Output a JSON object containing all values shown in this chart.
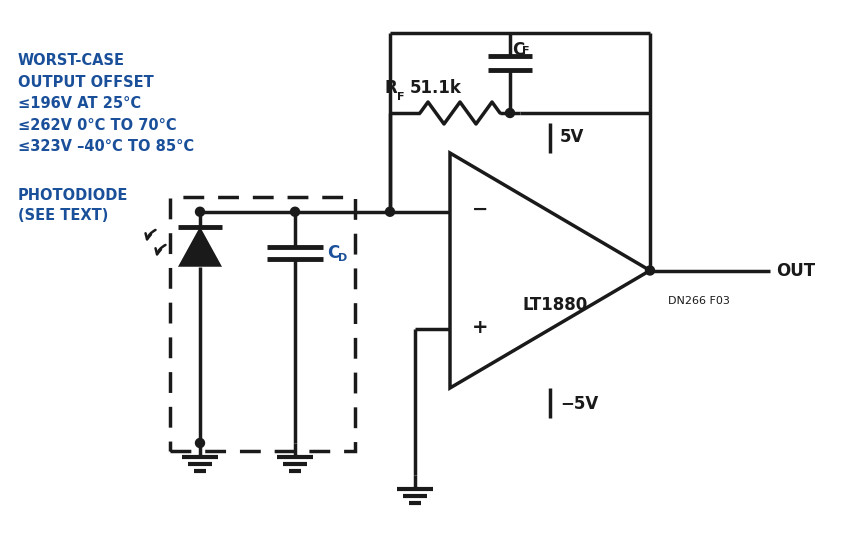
{
  "background_color": "#ffffff",
  "line_color": "#1a1a1a",
  "text_color": "#1a1a1a",
  "blue_color": "#1a4f9a",
  "lw": 2.5,
  "figsize": [
    8.48,
    5.43
  ],
  "dpi": 100,
  "opamp_label": "LT1880",
  "ref_label": "DN266 F03",
  "out_label": "OUT",
  "v5_label": "5V",
  "vm5_label": "−5V",
  "rf_label1": "R",
  "rf_label2": "F",
  "rf_val": "51.1k",
  "cf_label1": "C",
  "cf_label2": "F",
  "cd_label1": "C",
  "cd_label2": "D",
  "worst_case_line1": "WORST-CASE",
  "worst_case_line2": "OUTPUT OFFSET",
  "worst_case_line3": "≤196V AT 25°C",
  "worst_case_line4": "≤262V 0°C TO 70°C",
  "worst_case_line5": "≤323V –40°C TO 85°C",
  "pd_label1": "PHOTODIODE",
  "pd_label2": "(SEE TEXT)",
  "minus_sym": "−",
  "plus_sym": "+"
}
